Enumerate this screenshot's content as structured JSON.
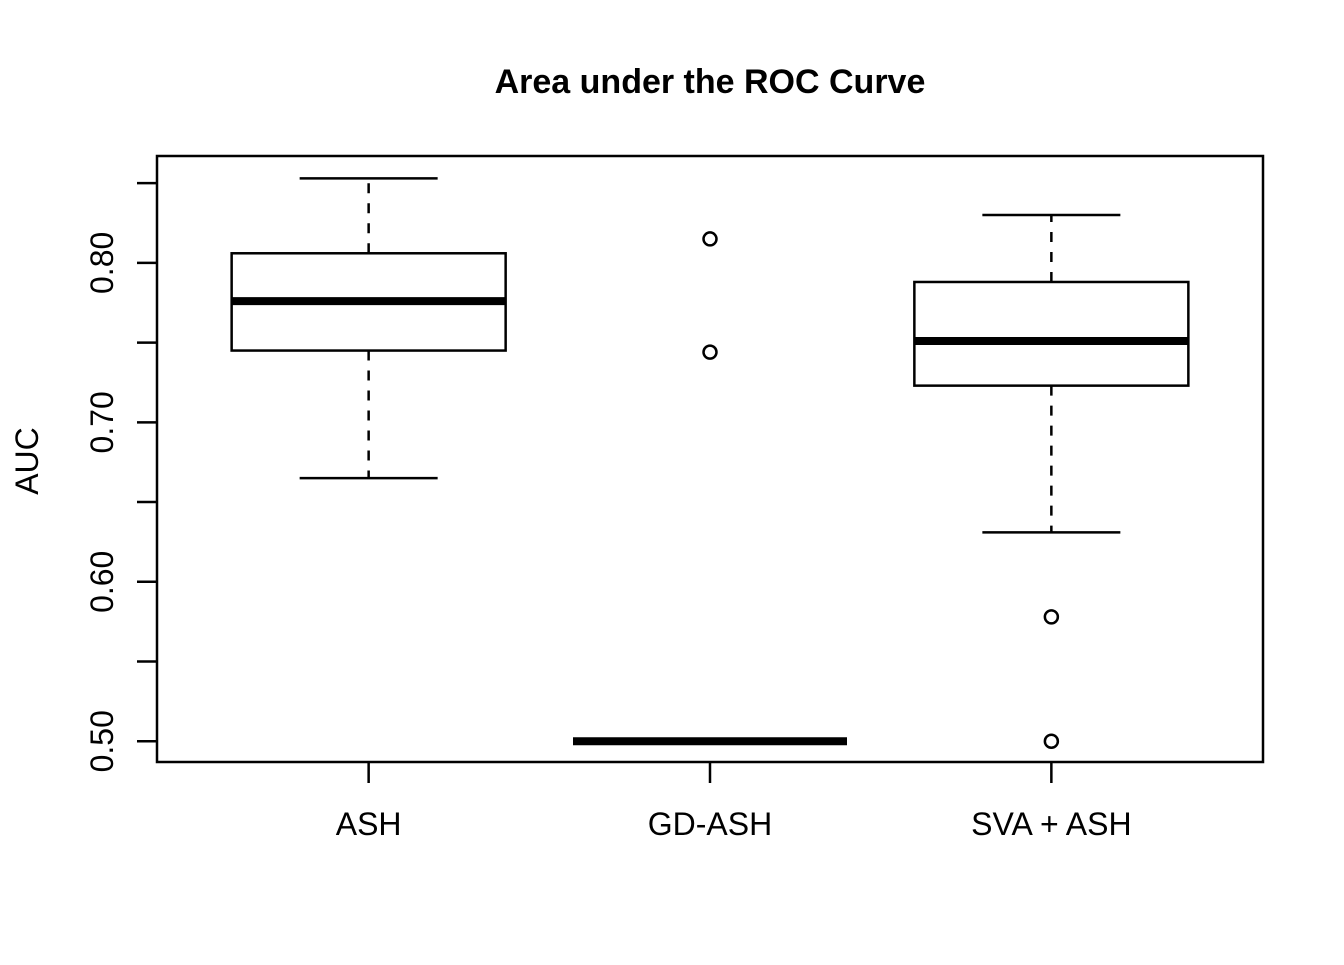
{
  "chart_data": {
    "type": "boxplot",
    "title": "Area under the ROC Curve",
    "ylabel": "AUC",
    "xlabel": "",
    "categories": [
      "ASH",
      "GD-ASH",
      "SVA + ASH"
    ],
    "series": [
      {
        "name": "ASH",
        "whisker_low": 0.665,
        "q1": 0.745,
        "median": 0.776,
        "q3": 0.806,
        "whisker_high": 0.853,
        "outliers": []
      },
      {
        "name": "GD-ASH",
        "whisker_low": 0.5,
        "q1": 0.5,
        "median": 0.5,
        "q3": 0.5,
        "whisker_high": 0.5,
        "outliers": [
          0.815,
          0.744
        ]
      },
      {
        "name": "SVA + ASH",
        "whisker_low": 0.631,
        "q1": 0.723,
        "median": 0.751,
        "q3": 0.788,
        "whisker_high": 0.83,
        "outliers": [
          0.578,
          0.5
        ]
      }
    ],
    "yticks": [
      {
        "value": 0.5,
        "label": "0.50"
      },
      {
        "value": 0.55,
        "label": ""
      },
      {
        "value": 0.6,
        "label": "0.60"
      },
      {
        "value": 0.65,
        "label": ""
      },
      {
        "value": 0.7,
        "label": "0.70"
      },
      {
        "value": 0.75,
        "label": ""
      },
      {
        "value": 0.8,
        "label": "0.80"
      },
      {
        "value": 0.85,
        "label": ""
      }
    ],
    "ylim": [
      0.487,
      0.867
    ],
    "grid": false,
    "legend": "none",
    "colors": {
      "stroke": "#000000",
      "box_fill": "#ffffff",
      "background": "#ffffff"
    }
  }
}
